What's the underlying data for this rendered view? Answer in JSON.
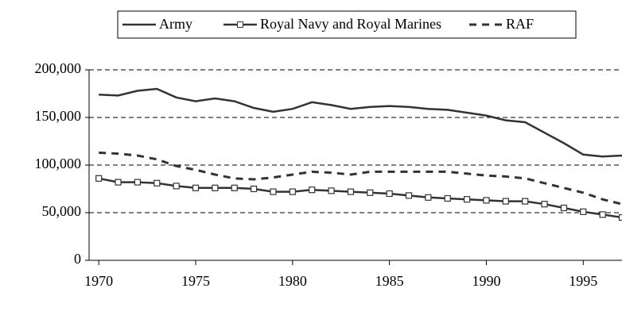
{
  "chart_data": {
    "type": "line",
    "x": [
      1970,
      1971,
      1972,
      1973,
      1974,
      1975,
      1976,
      1977,
      1978,
      1979,
      1980,
      1981,
      1982,
      1983,
      1984,
      1985,
      1986,
      1987,
      1988,
      1989,
      1990,
      1991,
      1992,
      1993,
      1994,
      1995,
      1996,
      1997
    ],
    "series": [
      {
        "name": "Army",
        "color": "#333333",
        "style": "solid",
        "marker": "none",
        "values": [
          174000,
          173000,
          178000,
          180000,
          171000,
          167000,
          170000,
          167000,
          160000,
          156000,
          159000,
          166000,
          163000,
          159000,
          161000,
          162000,
          161000,
          159000,
          158000,
          155000,
          152000,
          147000,
          145000,
          134000,
          123000,
          111000,
          109000,
          110000
        ]
      },
      {
        "name": "Royal Navy and Royal Marines",
        "color": "#333333",
        "style": "solid",
        "marker": "square",
        "values": [
          86000,
          82000,
          82000,
          81000,
          78000,
          76000,
          76000,
          76000,
          75000,
          72000,
          72000,
          74000,
          73000,
          72000,
          71000,
          70000,
          68000,
          66000,
          65000,
          64000,
          63000,
          62000,
          62000,
          59000,
          55000,
          51000,
          48000,
          45000
        ]
      },
      {
        "name": "RAF",
        "color": "#333333",
        "style": "dashed",
        "marker": "none",
        "values": [
          113000,
          112000,
          110000,
          106000,
          99000,
          95000,
          90000,
          86000,
          85000,
          87000,
          90000,
          93000,
          92000,
          90000,
          93000,
          93000,
          93000,
          93000,
          93000,
          91000,
          89000,
          88000,
          86000,
          81000,
          76000,
          71000,
          64000,
          59000
        ]
      }
    ],
    "xlim": [
      1969.5,
      1997
    ],
    "xticks": [
      1970,
      1975,
      1980,
      1985,
      1990,
      1995
    ],
    "ylim": [
      0,
      200000
    ],
    "yticks": [
      0,
      {
        "value": 50000,
        "label": "50,000"
      },
      {
        "value": 100000,
        "label": "100,000"
      },
      {
        "value": 150000,
        "label": "150,000"
      },
      {
        "value": 200000,
        "label": "200,000"
      }
    ],
    "grid": true,
    "legend": "top"
  }
}
